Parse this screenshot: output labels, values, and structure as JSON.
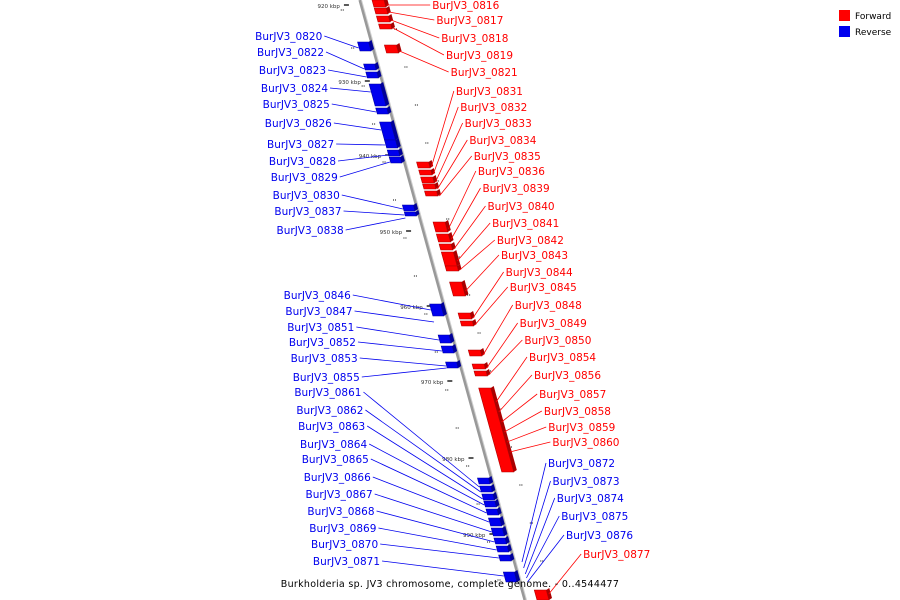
{
  "caption": "Burkholderia sp. JV3 chromosome, complete genome. - 0..4544477",
  "colors": {
    "forward": "#ff0000",
    "reverse": "#0000ee",
    "axis": "#999999",
    "tick": "#000000"
  },
  "legend": [
    {
      "name": "Forward",
      "color": "#ff0000"
    },
    {
      "name": "Reverse",
      "color": "#0000ee"
    }
  ],
  "kbp_markers": [
    "920 kbp",
    "930 kbp",
    "940 kbp",
    "950 kbp",
    "960 kbp",
    "970 kbp",
    "980 kbp",
    "990 kbp"
  ],
  "forward_genes": [
    "BurJV3_0816",
    "BurJV3_0817",
    "BurJV3_0818",
    "BurJV3_0819",
    "BurJV3_0821",
    "BurJV3_0831",
    "BurJV3_0832",
    "BurJV3_0833",
    "BurJV3_0834",
    "BurJV3_0835",
    "BurJV3_0836",
    "BurJV3_0839",
    "BurJV3_0840",
    "BurJV3_0841",
    "BurJV3_0842",
    "BurJV3_0843",
    "BurJV3_0844",
    "BurJV3_0845",
    "BurJV3_0848",
    "BurJV3_0849",
    "BurJV3_0850",
    "BurJV3_0854",
    "BurJV3_0856",
    "BurJV3_0857",
    "BurJV3_0858",
    "BurJV3_0859",
    "BurJV3_0860",
    "BurJV3_0877"
  ],
  "reverse_genes": [
    "BurJV3_0820",
    "BurJV3_0822",
    "BurJV3_0823",
    "BurJV3_0824",
    "BurJV3_0825",
    "BurJV3_0826",
    "BurJV3_0827",
    "BurJV3_0828",
    "BurJV3_0829",
    "BurJV3_0830",
    "BurJV3_0837",
    "BurJV3_0838",
    "BurJV3_0846",
    "BurJV3_0847",
    "BurJV3_0851",
    "BurJV3_0852",
    "BurJV3_0853",
    "BurJV3_0855",
    "BurJV3_0861",
    "BurJV3_0862",
    "BurJV3_0863",
    "BurJV3_0864",
    "BurJV3_0865",
    "BurJV3_0866",
    "BurJV3_0867",
    "BurJV3_0868",
    "BurJV3_0869",
    "BurJV3_0870",
    "BurJV3_0871",
    "BurJV3_0872",
    "BurJV3_0873",
    "BurJV3_0874",
    "BurJV3_0875",
    "BurJV3_0876"
  ]
}
